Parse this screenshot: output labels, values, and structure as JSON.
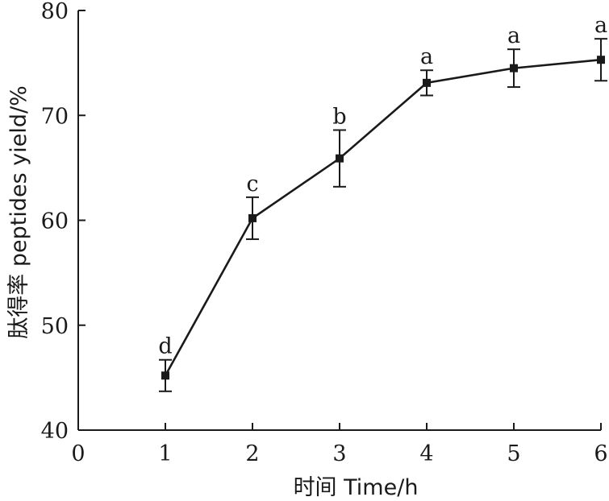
{
  "chart_data": {
    "type": "line",
    "xlabel": "时间 Time/h",
    "ylabel": "肽得率 peptides yield/%",
    "xlim": [
      0,
      6
    ],
    "ylim": [
      40,
      80
    ],
    "x_ticks": [
      "0",
      "1",
      "2",
      "3",
      "4",
      "5",
      "6"
    ],
    "y_ticks": [
      "40",
      "50",
      "60",
      "70",
      "80"
    ],
    "grid": false,
    "series": [
      {
        "x": [
          1,
          2,
          3,
          4,
          5,
          6
        ],
        "y": [
          45.2,
          60.2,
          65.9,
          73.1,
          74.5,
          75.3
        ],
        "error": [
          1.5,
          2.0,
          2.7,
          1.2,
          1.8,
          2.0
        ],
        "labels": [
          "d",
          "c",
          "b",
          "a",
          "a",
          "a"
        ],
        "marker": "square",
        "color": "#1a1a1a"
      }
    ]
  }
}
